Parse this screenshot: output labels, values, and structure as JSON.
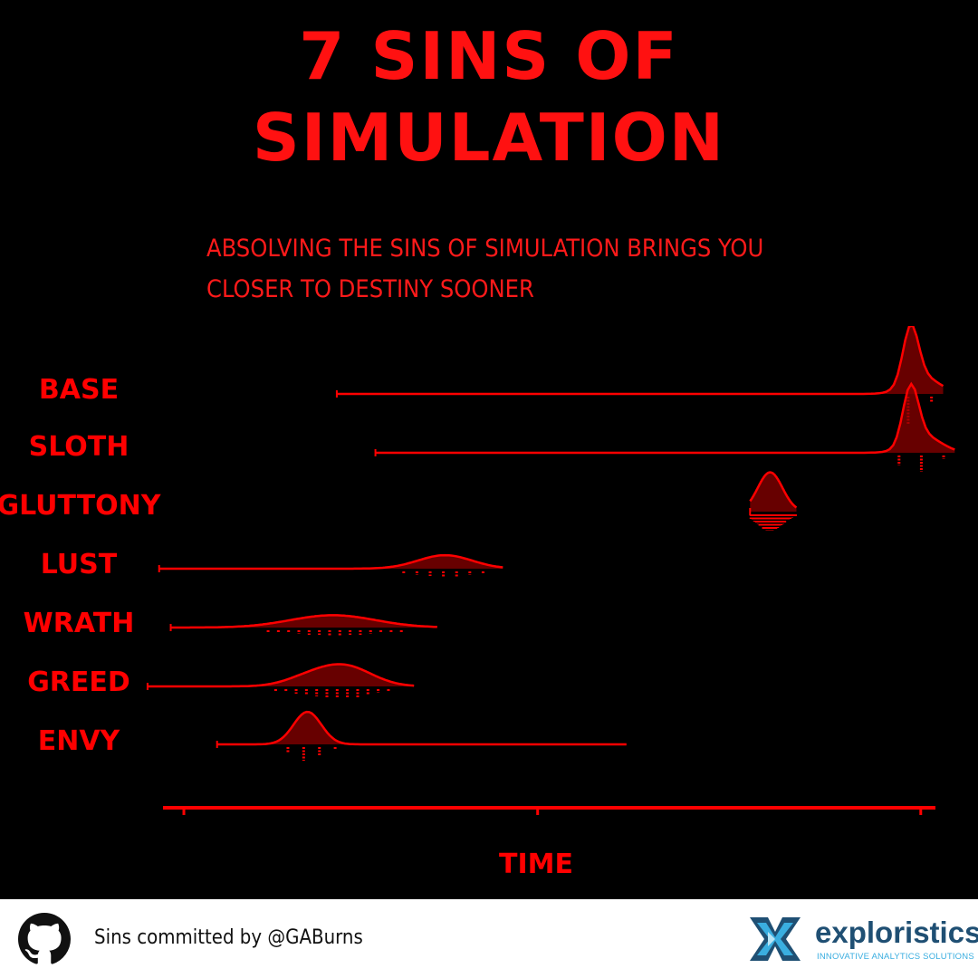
{
  "title_line1": "7 SINS OF",
  "title_line2": "SIMULATION",
  "subtitle_line1": "ABSOLVING THE SINS OF SIMULATION BRINGS YOU",
  "subtitle_line2": "CLOSER TO DESTINY SOONER",
  "chart_data": {
    "type": "ridgeline",
    "xlabel": "TIME",
    "xlim": [
      0,
      100
    ],
    "x_ticks": [
      2.7,
      48.5,
      98.1
    ],
    "color": "#ff0000",
    "series": [
      {
        "name": "BASE",
        "range": [
          22.5,
          101.0
        ],
        "peaks": [
          {
            "x": 96.8,
            "sd": 1.0,
            "h": 1.0
          },
          {
            "x": 98.3,
            "sd": 2.2,
            "h": 0.3
          }
        ]
      },
      {
        "name": "SLOTH",
        "range": [
          27.5,
          102.5
        ],
        "peaks": [
          {
            "x": 96.8,
            "sd": 1.0,
            "h": 1.0
          },
          {
            "x": 98.5,
            "sd": 2.2,
            "h": 0.3
          }
        ]
      },
      {
        "name": "GLUTTONY",
        "range": [
          76.0,
          82.0
        ],
        "peaks": [
          {
            "x": 78.6,
            "sd": 1.6,
            "h": 0.7
          }
        ]
      },
      {
        "name": "LUST",
        "range": [
          -0.5,
          44.0
        ],
        "peaks": [
          {
            "x": 36.5,
            "sd": 3.5,
            "h": 0.24
          }
        ]
      },
      {
        "name": "WRATH",
        "range": [
          1.0,
          35.5
        ],
        "peaks": [
          {
            "x": 22.0,
            "sd": 5.5,
            "h": 0.22
          }
        ]
      },
      {
        "name": "GREED",
        "range": [
          -2.0,
          32.5
        ],
        "peaks": [
          {
            "x": 23.5,
            "sd": 3.5,
            "h": 0.36
          },
          {
            "x": 18.5,
            "sd": 3.0,
            "h": 0.12
          }
        ]
      },
      {
        "name": "ENVY",
        "range": [
          7.0,
          60.0
        ],
        "peaks": [
          {
            "x": 18.7,
            "sd": 1.8,
            "h": 0.58
          }
        ]
      }
    ]
  },
  "footer": {
    "credit": "Sins committed by @GABurns",
    "brand": "exploristics",
    "tagline": "INNOVATIVE ANALYTICS SOLUTIONS",
    "github_icon": "github-icon",
    "logo_icon": "exploristics-logo-icon"
  }
}
